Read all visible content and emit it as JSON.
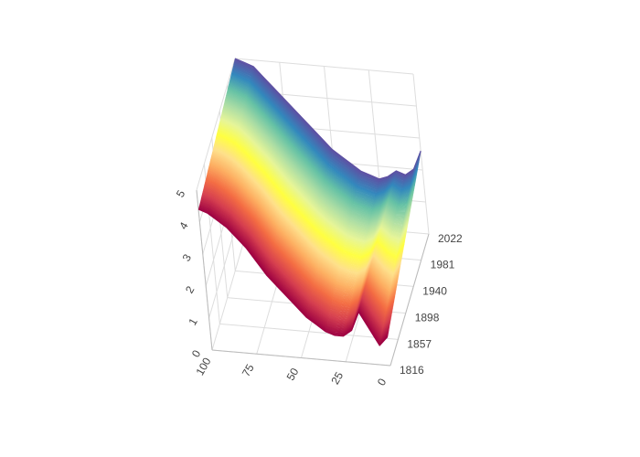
{
  "chart_data": {
    "type": "surface-3d-lines",
    "x_axis": {
      "ticks": [
        "100",
        "75",
        "50",
        "25",
        "0"
      ],
      "range": [
        0,
        100
      ]
    },
    "y_axis": {
      "ticks": [
        "1816",
        "1857",
        "1898",
        "1940",
        "1981",
        "2022"
      ],
      "range": [
        1816,
        2022
      ]
    },
    "z_axis": {
      "ticks": [
        "0",
        "1",
        "2",
        "3",
        "4",
        "5"
      ],
      "range": [
        0,
        5
      ]
    },
    "series_count": 207,
    "colorscale": [
      "#9e0142",
      "#d53e4f",
      "#f46d43",
      "#fdae61",
      "#fee08b",
      "#ffff40",
      "#e6f598",
      "#abdda4",
      "#66c2a5",
      "#3288bd",
      "#5e4fa2"
    ],
    "representative_profile": {
      "x": [
        100,
        95,
        90,
        85,
        80,
        75,
        70,
        65,
        60,
        55,
        50,
        45,
        40,
        35,
        30,
        25,
        20,
        15,
        10,
        5,
        0
      ],
      "z_first_year": [
        4.4,
        4.3,
        4.1,
        3.9,
        3.6,
        3.3,
        2.9,
        2.5,
        2.2,
        1.9,
        1.6,
        1.3,
        1.1,
        0.9,
        0.8,
        0.8,
        1.0,
        1.6,
        1.1,
        0.6,
        0.9
      ],
      "z_last_year": [
        5.0,
        4.9,
        4.8,
        4.5,
        4.2,
        3.9,
        3.6,
        3.3,
        3.0,
        2.7,
        2.4,
        2.2,
        2.0,
        1.8,
        1.7,
        1.6,
        1.7,
        1.9,
        1.8,
        2.0,
        2.6
      ]
    }
  }
}
